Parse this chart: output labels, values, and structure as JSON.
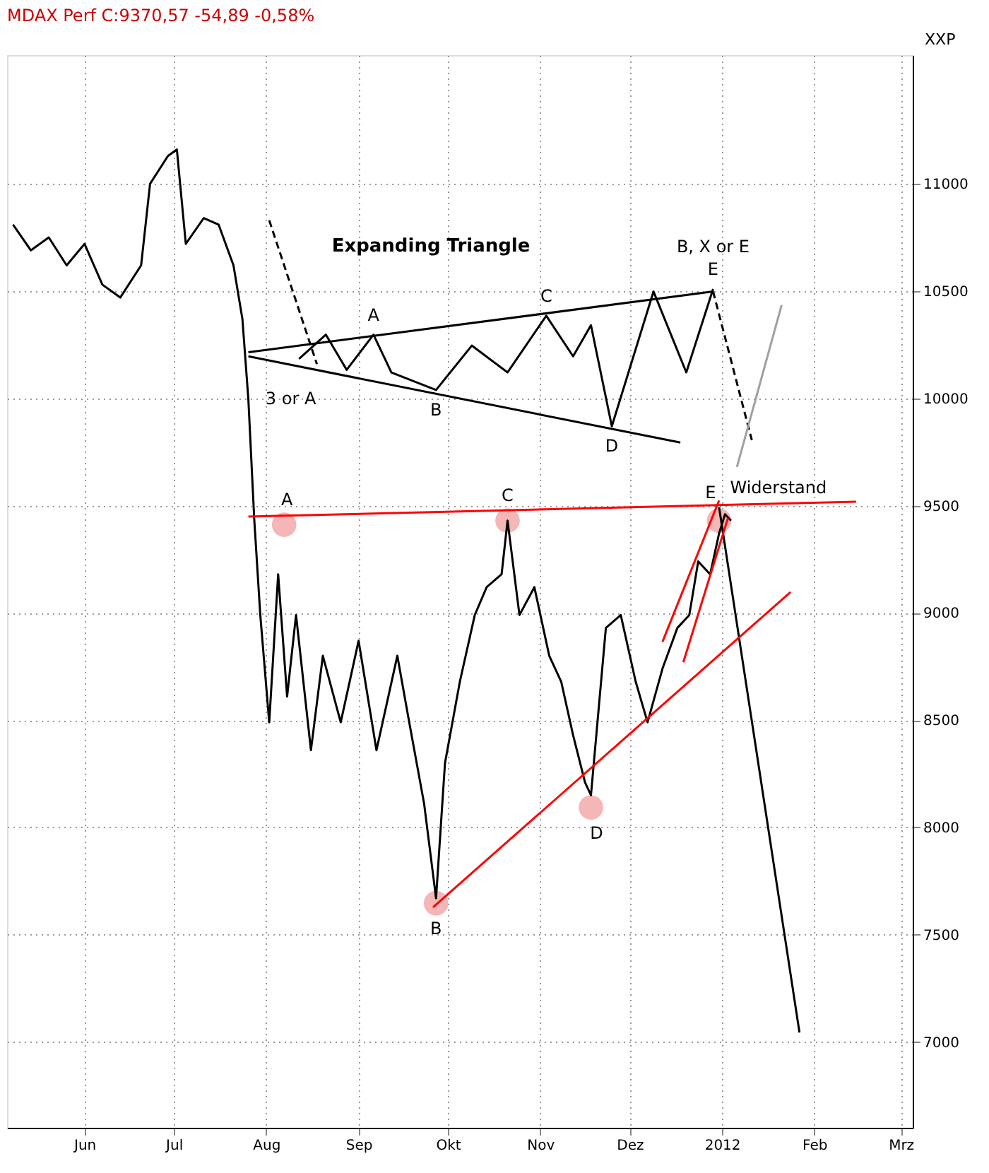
{
  "chart_data": {
    "type": "line",
    "title": "MDAX Perf C:9370,57 -54,89 -0,58%",
    "ylabel": "XXP",
    "xlim": [
      "2011-05-06",
      "2012-03-05"
    ],
    "ylim": [
      6600,
      11600
    ],
    "xticks": [
      {
        "value": "2011-06-01",
        "label": "Jun"
      },
      {
        "value": "2011-07-01",
        "label": "Jul"
      },
      {
        "value": "2011-08-01",
        "label": "Aug"
      },
      {
        "value": "2011-09-01",
        "label": "Sep"
      },
      {
        "value": "2011-10-01",
        "label": "Okt"
      },
      {
        "value": "2011-11-01",
        "label": "Nov"
      },
      {
        "value": "2011-12-01",
        "label": "Dez"
      },
      {
        "value": "2012-01-01",
        "label": "2012"
      },
      {
        "value": "2012-02-01",
        "label": "Feb"
      },
      {
        "value": "2012-03-01",
        "label": "Mrz"
      }
    ],
    "yticks": [
      7000,
      7500,
      8000,
      8500,
      9000,
      9500,
      10000,
      10500,
      11000
    ],
    "grid": true,
    "series": [
      {
        "color": "#000000",
        "x": [
          "2011-05-08",
          "2011-05-14",
          "2011-05-20",
          "2011-05-26",
          "2011-06-01",
          "2011-06-07",
          "2011-06-13",
          "2011-06-20",
          "2011-06-23",
          "2011-06-29",
          "2011-07-02",
          "2011-07-05",
          "2011-07-11",
          "2011-07-16",
          "2011-07-21",
          "2011-07-24",
          "2011-07-26",
          "2011-07-28",
          "2011-07-30",
          "2011-08-02",
          "2011-08-05",
          "2011-08-08",
          "2011-08-11",
          "2011-08-16",
          "2011-08-20",
          "2011-08-26",
          "2011-09-01",
          "2011-09-07",
          "2011-09-14",
          "2011-09-18",
          "2011-09-23",
          "2011-09-27",
          "2011-09-30",
          "2011-10-05",
          "2011-10-10",
          "2011-10-14",
          "2011-10-19",
          "2011-10-21",
          "2011-10-25",
          "2011-10-30",
          "2011-11-04",
          "2011-11-08",
          "2011-11-12",
          "2011-11-16",
          "2011-11-18",
          "2011-11-23",
          "2011-11-28",
          "2011-12-03",
          "2011-12-07",
          "2011-12-12",
          "2011-12-17",
          "2011-12-21",
          "2011-12-24",
          "2011-12-28",
          "2011-12-31",
          "2012-01-02",
          "2012-01-04"
        ],
        "values": [
          10810,
          10690,
          10750,
          10620,
          10720,
          10530,
          10470,
          10620,
          11000,
          11130,
          11160,
          10720,
          10840,
          10810,
          10620,
          10370,
          9995,
          9430,
          8990,
          8490,
          9180,
          8610,
          8990,
          8360,
          8800,
          8490,
          8870,
          8360,
          8800,
          8490,
          8110,
          7670,
          8300,
          8680,
          8990,
          9120,
          9180,
          9430,
          8990,
          9120,
          8800,
          8680,
          8430,
          8210,
          8150,
          8930,
          8990,
          8680,
          8490,
          8740,
          8930,
          8990,
          9240,
          9180,
          9370,
          9460,
          9430
        ]
      },
      {
        "type": "line",
        "color": "#000000",
        "x": [
          "2011-08-12",
          "2011-08-21",
          "2011-08-28",
          "2011-09-06",
          "2011-09-12",
          "2011-09-27",
          "2011-10-09",
          "2011-10-21",
          "2011-11-03",
          "2011-11-12",
          "2011-11-18",
          "2011-11-25",
          "2011-12-09",
          "2011-12-20",
          "2011-12-29"
        ],
        "values": [
          10184,
          10297,
          10133,
          10297,
          10121,
          10039,
          10246,
          10121,
          10385,
          10196,
          10341,
          9870,
          10498,
          10121,
          10510
        ]
      },
      {
        "type": "line",
        "color": "#000000",
        "x": [
          "2011-07-26",
          "2011-12-29"
        ],
        "values": [
          10215,
          10498
        ]
      },
      {
        "type": "line",
        "color": "#000000",
        "x": [
          "2011-07-26",
          "2011-12-18"
        ],
        "values": [
          10196,
          9794
        ]
      },
      {
        "type": "line",
        "color": "#000000",
        "line_style": "dashed",
        "x": [
          "2011-08-02",
          "2011-08-18"
        ],
        "values": [
          10830,
          10160
        ]
      },
      {
        "type": "line",
        "color": "#000000",
        "line_style": "dashed",
        "x": [
          "2011-12-29",
          "2012-01-11"
        ],
        "values": [
          10498,
          9805
        ]
      },
      {
        "type": "line",
        "color": "#a0a0a0",
        "x": [
          "2012-01-06",
          "2012-01-21"
        ],
        "values": [
          9680,
          10435
        ]
      },
      {
        "type": "line",
        "color": "#000000",
        "x": [
          "2011-12-31",
          "2012-01-27"
        ],
        "values": [
          9493,
          7044
        ]
      },
      {
        "type": "line",
        "color": "#ff0000",
        "x": [
          "2011-07-26",
          "2012-02-15"
        ],
        "values": [
          9449,
          9518
        ]
      },
      {
        "type": "line",
        "color": "#ff0000",
        "x": [
          "2011-09-26",
          "2012-01-24"
        ],
        "values": [
          7628,
          9097
        ]
      },
      {
        "type": "line",
        "color": "#ff0000",
        "x": [
          "2011-12-12",
          "2011-12-31"
        ],
        "values": [
          8865,
          9524
        ]
      },
      {
        "type": "line",
        "color": "#ff0000",
        "x": [
          "2011-12-19",
          "2012-01-03"
        ],
        "values": [
          8770,
          9443
        ]
      },
      {
        "type": "scatter",
        "color": "#f4b6b6",
        "marker": "circle",
        "x": [
          "2011-08-07",
          "2011-09-27",
          "2011-10-21",
          "2011-11-18",
          "2011-12-31"
        ],
        "values": [
          9411,
          7647,
          9430,
          8093,
          9430
        ]
      }
    ],
    "annotations": [
      "Expanding Triangle",
      {
        "text": "B, X or E",
        "x": "2011-12-29",
        "y": 10510
      },
      {
        "text": "A",
        "x": "2011-09-06",
        "y": 10297
      },
      {
        "text": "B",
        "x": "2011-09-27",
        "y": 10039
      },
      {
        "text": "C",
        "x": "2011-11-03",
        "y": 10385
      },
      {
        "text": "D",
        "x": "2011-11-25",
        "y": 9870
      },
      {
        "text": "E",
        "x": "2011-12-29",
        "y": 10510
      },
      {
        "text": "3 or A",
        "x": "2011-07-26",
        "y": 10196
      },
      {
        "text": "A",
        "x": "2011-08-07",
        "y": 9411
      },
      {
        "text": "C",
        "x": "2011-10-21",
        "y": 9430
      },
      {
        "text": "E",
        "x": "2011-12-31",
        "y": 9430
      },
      {
        "text": "B",
        "x": "2011-09-27",
        "y": 7647
      },
      {
        "text": "D",
        "x": "2011-11-18",
        "y": 8093
      },
      {
        "text": "Widerstand",
        "x": "2012-02-15",
        "y": 9518
      }
    ]
  }
}
